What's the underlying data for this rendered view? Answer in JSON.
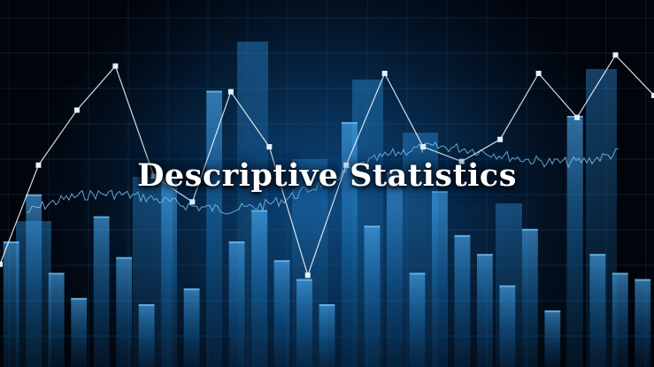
{
  "title": "Descriptive Statistics",
  "colors": {
    "background": "#031020",
    "glow": "#0d4a80",
    "bar": "#1a7ac4",
    "bar_highlight": "#4fb3ff",
    "line": "#ffffff",
    "grid": "#1e6aa8"
  },
  "decoration": {
    "zigzag_levels": [
      0.28,
      0.55,
      0.7,
      0.82,
      0.52,
      0.45,
      0.75,
      0.6,
      0.25,
      0.55,
      0.8,
      0.6,
      0.56,
      0.62,
      0.8,
      0.68,
      0.85,
      0.74
    ],
    "bar_levels": [
      0.4,
      0.55,
      0.3,
      0.22,
      0.48,
      0.35,
      0.2,
      0.6,
      0.25,
      0.88,
      0.4,
      0.5,
      0.34,
      0.28,
      0.2,
      0.78,
      0.45,
      0.62,
      0.3,
      0.56,
      0.42,
      0.36,
      0.26,
      0.44,
      0.18,
      0.8,
      0.36,
      0.3,
      0.28
    ]
  }
}
